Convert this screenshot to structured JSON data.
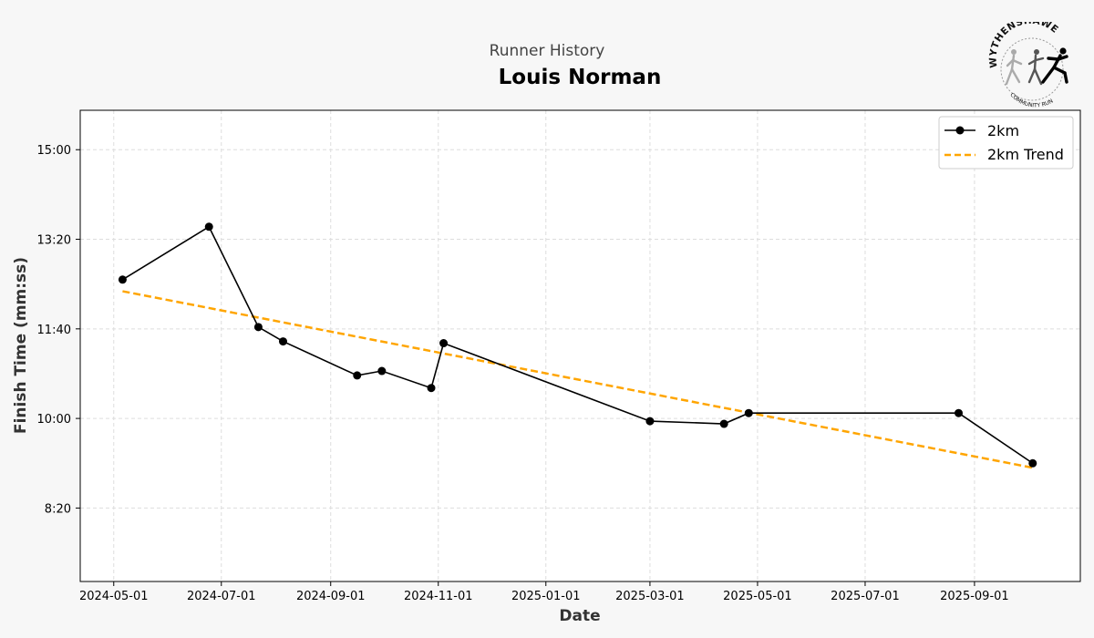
{
  "header": {
    "subtitle": "Runner History",
    "title": "Louis Norman"
  },
  "logo": {
    "arc_text": "WYTHENSHAWE",
    "bottom_text": "COMMUNITY RUN"
  },
  "chart_data": {
    "type": "line",
    "xlabel": "Date",
    "ylabel": "Finish Time (mm:ss)",
    "x_ticks": [
      "2024-05-01",
      "2024-07-01",
      "2024-09-01",
      "2024-11-01",
      "2025-01-01",
      "2025-03-01",
      "2025-05-01",
      "2025-07-01",
      "2025-09-01"
    ],
    "y_ticks": [
      "8:20",
      "10:00",
      "11:40",
      "13:20",
      "15:00"
    ],
    "xlim": [
      "2024-04-12",
      "2025-10-31"
    ],
    "ylim": [
      "6:58",
      "15:44"
    ],
    "grid": true,
    "legend_position": "top-right",
    "colors": {
      "series": "#000000",
      "trend": "#FFA500"
    },
    "series": [
      {
        "name": "2km",
        "style": "solid-line-with-markers",
        "points": [
          {
            "x": "2024-05-06",
            "y": "12:35"
          },
          {
            "x": "2024-06-24",
            "y": "13:34"
          },
          {
            "x": "2024-07-22",
            "y": "11:42"
          },
          {
            "x": "2024-08-05",
            "y": "11:26"
          },
          {
            "x": "2024-09-16",
            "y": "10:48"
          },
          {
            "x": "2024-09-30",
            "y": "10:53"
          },
          {
            "x": "2024-10-28",
            "y": "10:34"
          },
          {
            "x": "2024-11-04",
            "y": "11:24"
          },
          {
            "x": "2025-03-01",
            "y": "9:57"
          },
          {
            "x": "2025-04-12",
            "y": "9:54"
          },
          {
            "x": "2025-04-26",
            "y": "10:06"
          },
          {
            "x": "2025-08-23",
            "y": "10:06"
          },
          {
            "x": "2025-10-04",
            "y": "9:10"
          }
        ]
      },
      {
        "name": "2km Trend",
        "style": "dashed",
        "points": [
          {
            "x": "2024-05-06",
            "y": "12:22"
          },
          {
            "x": "2025-10-04",
            "y": "9:05"
          }
        ]
      }
    ]
  }
}
